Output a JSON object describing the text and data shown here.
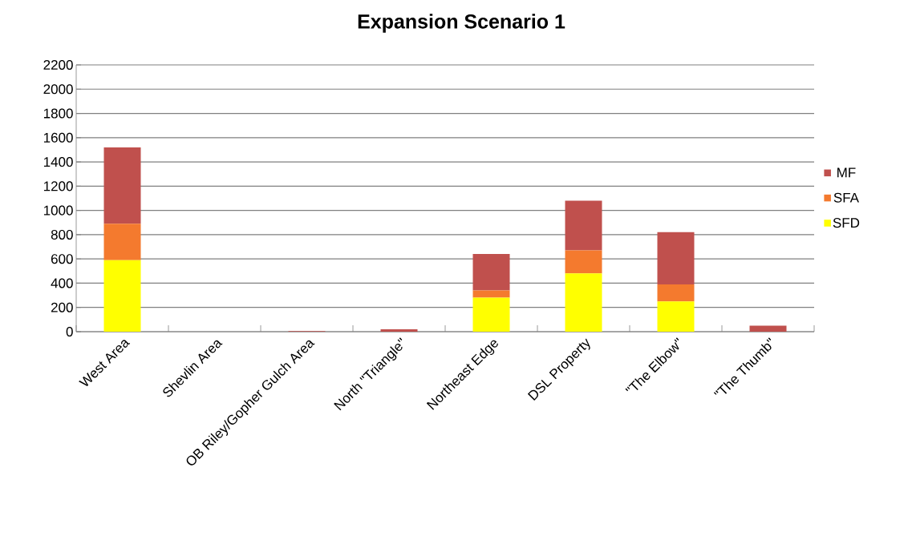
{
  "chart_data": {
    "type": "bar",
    "title": "Expansion Scenario 1",
    "stacked": true,
    "categories": [
      "West Area",
      "Shevlin Area",
      "OB Riley/Gopher Gulch Area",
      "North \"Triangle\"",
      "Northeast Edge",
      "DSL Property",
      "\"The Elbow\"",
      "\"The Thumb\""
    ],
    "series": [
      {
        "name": "SFD",
        "color": "#ffff00",
        "values": [
          590,
          0,
          0,
          0,
          280,
          480,
          250,
          0
        ]
      },
      {
        "name": "SFA",
        "color": "#f47a2e",
        "values": [
          300,
          0,
          0,
          0,
          60,
          190,
          140,
          0
        ]
      },
      {
        "name": "MF",
        "color": "#c0504d",
        "values": [
          630,
          0,
          5,
          20,
          300,
          410,
          430,
          50
        ]
      }
    ],
    "ylim": [
      0,
      2200
    ],
    "yticks": [
      0,
      200,
      400,
      600,
      800,
      1000,
      1200,
      1400,
      1600,
      1800,
      2000,
      2200
    ],
    "grid": "y",
    "legend": "right"
  }
}
